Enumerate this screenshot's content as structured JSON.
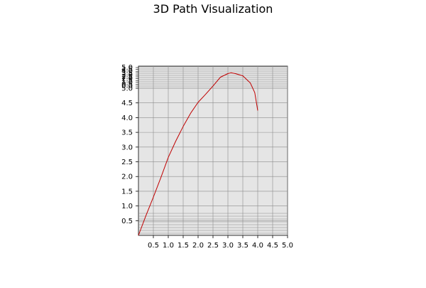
{
  "chart_data": {
    "type": "line",
    "title": "3D Path Visualization",
    "xlabel": "",
    "ylabel": "",
    "grid": true,
    "colors": {
      "plot_background": "#e5e5e5",
      "grid": "#8c8c8c",
      "series": "#c00000"
    },
    "x_ticks": [
      "0.5",
      "1.0",
      "1.5",
      "2.0",
      "2.5",
      "3.0",
      "3.5",
      "4.0",
      "4.5",
      "5.0"
    ],
    "y_ticks": [
      "0.5",
      "1.0",
      "1.5",
      "2.0",
      "2.5",
      "3.0",
      "3.5",
      "4.0",
      "4.5",
      "5.0"
    ],
    "y_ticks_compressed": [
      "0.0",
      "0.5",
      "1.0",
      "1.5",
      "2.0",
      "2.5",
      "3.0",
      "3.5",
      "4.0",
      "4.5",
      "5.0"
    ],
    "series": [
      {
        "x": [
          0.0,
          0.25,
          0.5,
          0.75,
          1.0,
          1.25,
          1.5,
          1.75,
          2.0,
          2.25,
          2.5,
          2.75,
          3.0,
          3.1,
          3.25,
          3.5,
          3.75,
          3.9,
          4.0
        ],
        "y": [
          0.0,
          0.67,
          1.3,
          1.96,
          2.65,
          3.2,
          3.7,
          4.15,
          4.52,
          4.79,
          5.05,
          5.25,
          5.33,
          5.35,
          5.33,
          5.28,
          5.12,
          4.85,
          4.24
        ]
      }
    ]
  }
}
